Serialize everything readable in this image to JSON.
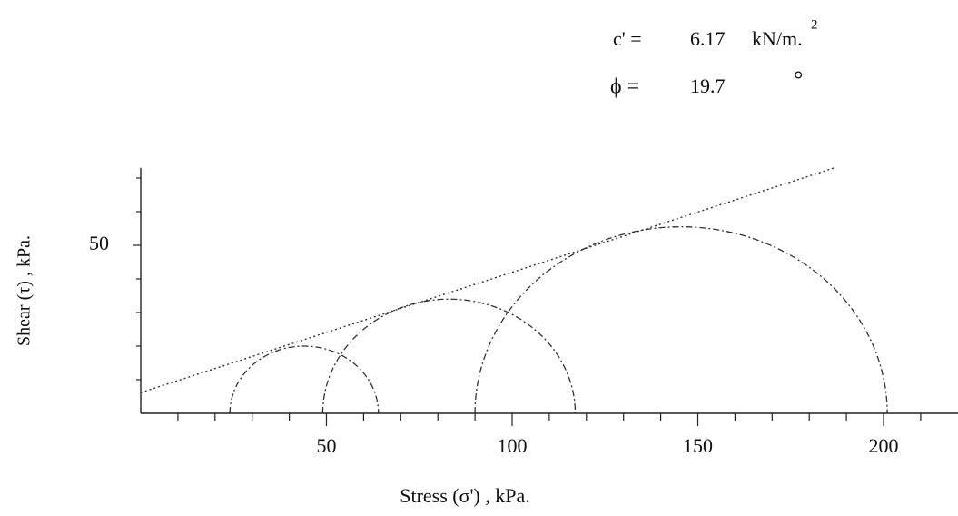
{
  "chart_data": {
    "type": "mohr",
    "x_label": "Stress (σ') , kPa.",
    "y_label": "Shear (τ) , kPa.",
    "circles": {
      "sigma3": [
        24,
        49,
        90
      ],
      "sigma1": [
        64,
        117,
        201
      ]
    },
    "cohesion_label": "c' =",
    "cohesion": 6.17,
    "cohesion_unit": "kN/m.",
    "cohesion_unit_power": "2",
    "phi_label": "ϕ =",
    "phi": 19.7,
    "phi_unit": "°",
    "xlim": [
      0,
      220
    ],
    "xticks": [
      50,
      100,
      150,
      200
    ],
    "xminor": [
      10,
      20,
      30,
      40,
      60,
      70,
      80,
      90,
      110,
      120,
      130,
      140,
      160,
      170,
      180,
      190,
      210
    ],
    "ylim": [
      0,
      73
    ],
    "yticks": [
      50
    ],
    "yminor": [
      10,
      20,
      30,
      40,
      60,
      70
    ],
    "color": "#333"
  }
}
